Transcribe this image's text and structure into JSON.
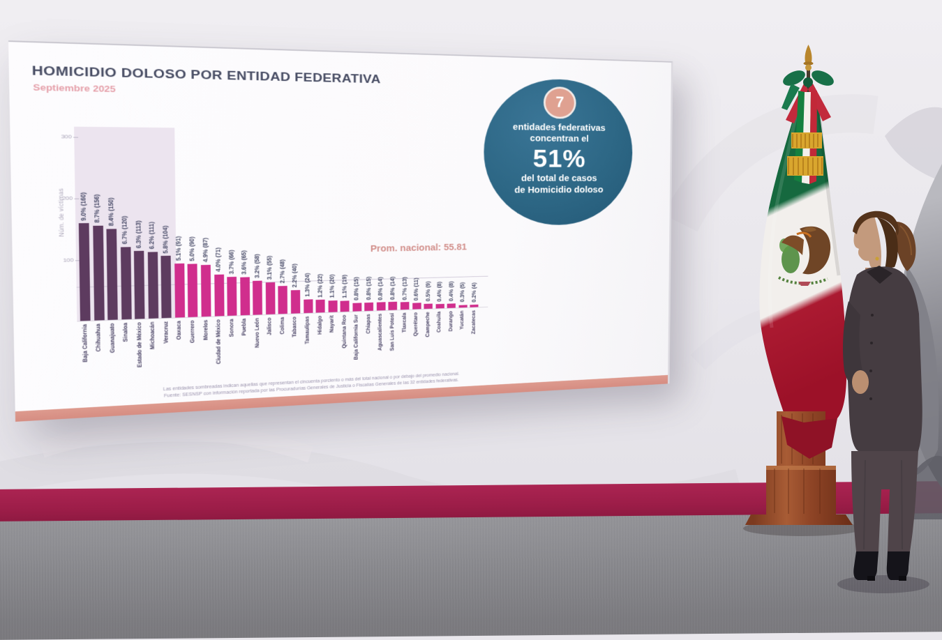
{
  "slide": {
    "title": "HOMICIDIO DOLOSO POR ENTIDAD FEDERATIVA",
    "subtitle": "Septiembre 2025",
    "y_axis_label": "Núm. de víctimas",
    "highlight": {
      "number": "7",
      "line1": "entidades federativas",
      "line2": "concentran el",
      "percent": "51%",
      "line3": "del total de casos",
      "line4": "de Homicidio doloso"
    },
    "average_label": "Prom. nacional: 55.81",
    "footnote1": "Las entidades sombreadas indican aquellas que representan el cincuenta porciento o más del total nacional o por debajo del promedio nacional.",
    "footnote2": "Fuente: SESNSP con información reportada por las Procuradurías Generales de Justicia o Fiscalías Generales de las 32 entidades federativas."
  },
  "chart_data": {
    "type": "bar",
    "title": "HOMICIDIO DOLOSO POR ENTIDAD FEDERATIVA",
    "subtitle": "Septiembre 2025",
    "ylabel": "Núm. de víctimas",
    "ylim": [
      0,
      330
    ],
    "yticks": [
      100,
      200,
      300
    ],
    "grid": false,
    "average_line": 55.81,
    "average_label": "Prom. nacional: 55.81",
    "highlighted_first_n": 7,
    "highlight_note": "7 entidades federativas concentran el 51% del total de casos de Homicidio doloso",
    "categories": [
      "Baja California",
      "Chihuahua",
      "Guanajuato",
      "Sinaloa",
      "Estado de México",
      "Michoacán",
      "Veracruz",
      "Oaxaca",
      "Guerrero",
      "Morelos",
      "Ciudad de México",
      "Sonora",
      "Puebla",
      "Nuevo León",
      "Jalisco",
      "Colima",
      "Tabasco",
      "Tamaulipas",
      "Hidalgo",
      "Nayarit",
      "Quintana Roo",
      "Baja California Sur",
      "Chiapas",
      "Aguascalientes",
      "San Luis Potosí",
      "Tlaxcala",
      "Querétaro",
      "Campeche",
      "Coahuila",
      "Durango",
      "Yucatán",
      "Zacatecas"
    ],
    "values": [
      160,
      156,
      150,
      120,
      113,
      111,
      104,
      91,
      90,
      87,
      71,
      66,
      65,
      58,
      55,
      48,
      40,
      24,
      22,
      20,
      19,
      15,
      15,
      14,
      14,
      13,
      11,
      9,
      8,
      8,
      5,
      4
    ],
    "percent_labels": [
      "9.0%",
      "8.7%",
      "8.4%",
      "6.7%",
      "6.3%",
      "6.2%",
      "5.8%",
      "5.1%",
      "5.0%",
      "4.9%",
      "4.0%",
      "3.7%",
      "3.6%",
      "3.2%",
      "3.1%",
      "2.7%",
      "2.2%",
      "1.3%",
      "1.2%",
      "1.1%",
      "1.1%",
      "0.8%",
      "0.8%",
      "0.8%",
      "0.8%",
      "0.7%",
      "0.6%",
      "0.5%",
      "0.4%",
      "0.4%",
      "0.3%",
      "0.2%"
    ]
  },
  "colors": {
    "dark_bar": "#5d3b5f",
    "pink_bar": "#d02e8d",
    "shade": "#ece4ef",
    "circle": "#2d6785",
    "circle_inner": "#dfa191",
    "title": "#474c63",
    "subtitle_pink": "#e5a0aa",
    "average_label": "#d28f8b",
    "strip_salmon": "#d68d82",
    "band_maroon": "#9c1d48",
    "flag_green": "#16693f",
    "flag_red": "#ab1a31"
  }
}
